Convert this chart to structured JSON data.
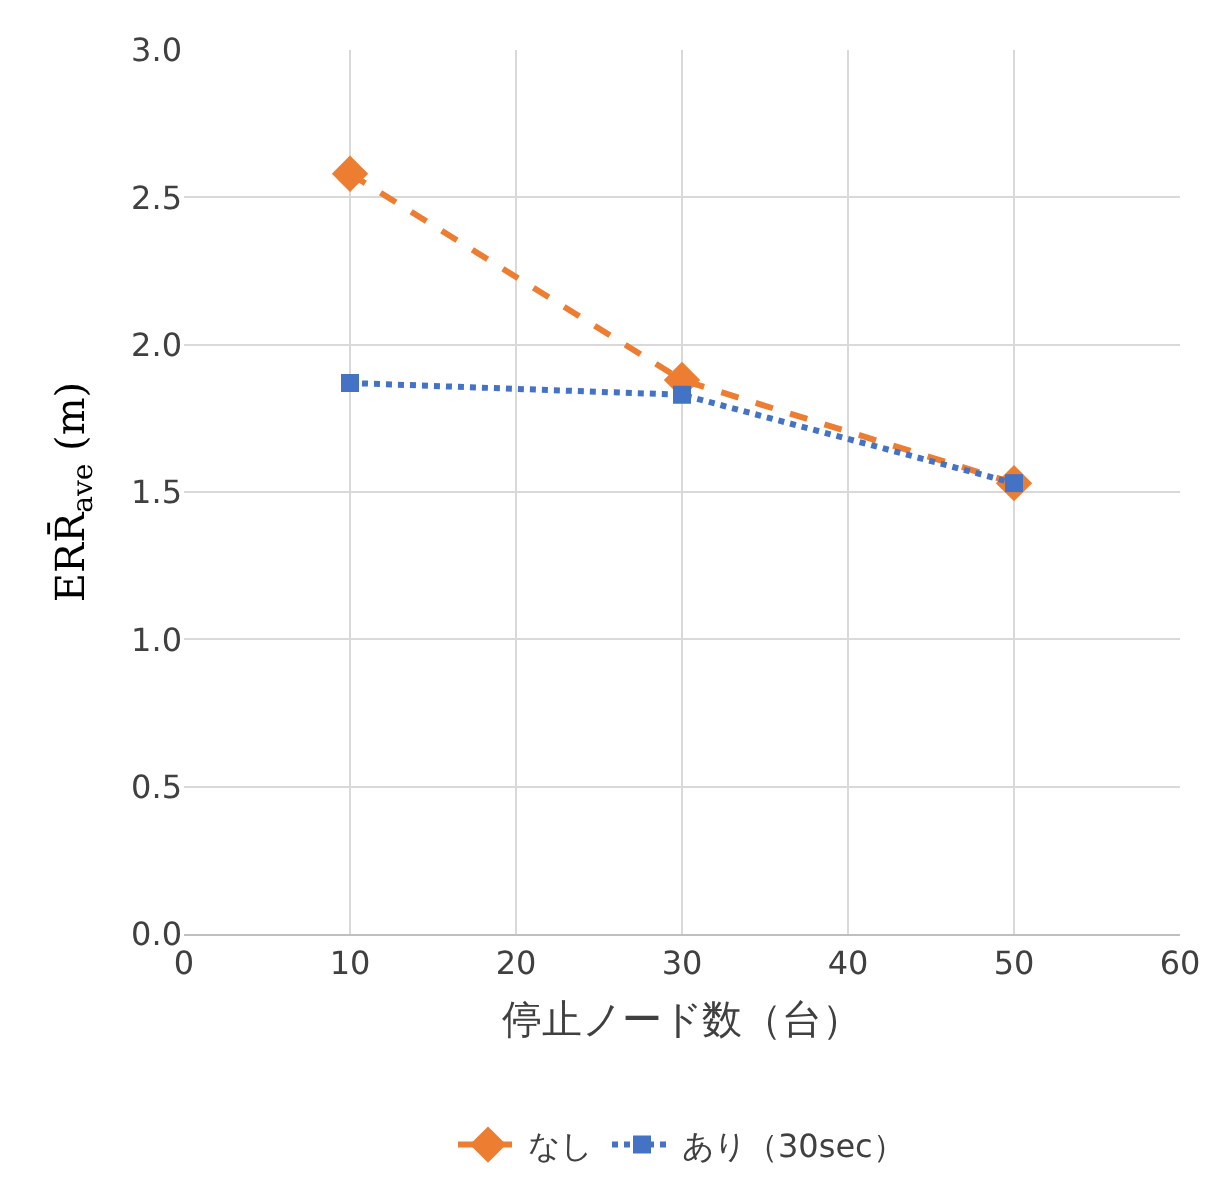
{
  "chart_data": {
    "type": "line",
    "x": [
      10,
      30,
      50
    ],
    "series": [
      {
        "name": "なし",
        "color": "#ed7d31",
        "values": [
          2.58,
          1.88,
          1.53
        ],
        "marker": "diamond",
        "line_style": "dashed"
      },
      {
        "name": "あり（30sec）",
        "color": "#4472c4",
        "values": [
          1.87,
          1.83,
          1.53
        ],
        "marker": "square",
        "line_style": "dotted"
      }
    ],
    "xlabel": "停止ノード数（台）",
    "ylabel": "ERR̄$_{ave}$ (m)",
    "xlim": [
      0,
      60
    ],
    "xticks": [
      0,
      10,
      20,
      30,
      40,
      50,
      60
    ],
    "ylim": [
      0,
      3
    ],
    "yticks": [
      {
        "value": 0,
        "label": "0.0"
      },
      {
        "value": 0.5,
        "label": "0.5"
      },
      {
        "value": 1,
        "label": "1.0"
      },
      {
        "value": 1.5,
        "label": "1.5"
      },
      {
        "value": 2,
        "label": "2.0"
      },
      {
        "value": 2.5,
        "label": "2.5"
      },
      {
        "value": 3,
        "label": "3.0"
      }
    ],
    "grid": true,
    "legend": "bottom"
  }
}
